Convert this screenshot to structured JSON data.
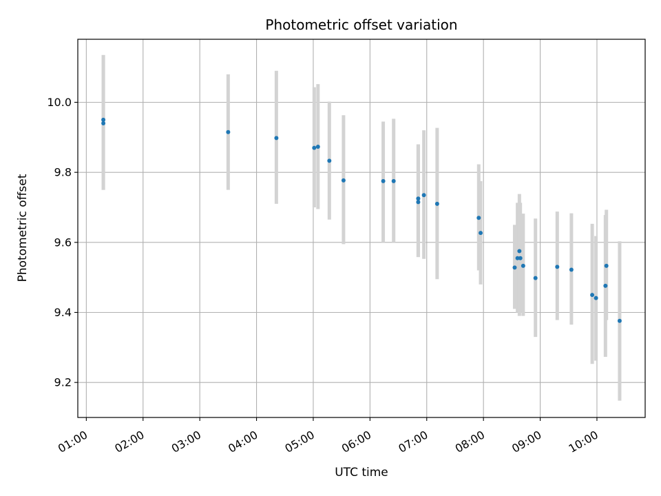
{
  "chart_data": {
    "type": "scatter",
    "title": "Photometric offset variation",
    "xlabel": "UTC time",
    "ylabel": "Photometric offset",
    "grid": true,
    "xlim": [
      "00:51",
      "10:51"
    ],
    "ylim": [
      9.1,
      10.18
    ],
    "x_ticks": [
      "01:00",
      "02:00",
      "03:00",
      "04:00",
      "05:00",
      "06:00",
      "07:00",
      "08:00",
      "09:00",
      "10:00"
    ],
    "y_ticks": [
      9.2,
      9.4,
      9.6,
      9.8,
      10.0
    ],
    "y_tick_labels": [
      "9.2",
      "9.4",
      "9.6",
      "9.8",
      "10.0"
    ],
    "colors": {
      "points": "#1f77b4",
      "errorbars": "#d3d3d3",
      "grid": "#b0b0b0"
    },
    "series": [
      {
        "points": [
          {
            "x": "01:18",
            "y": 9.95,
            "ymin": 9.75,
            "ymax": 10.135
          },
          {
            "x": "01:18",
            "y": 9.94,
            "ymin": 9.75,
            "ymax": 10.135
          },
          {
            "x": "03:30",
            "y": 9.915,
            "ymin": 9.75,
            "ymax": 10.08
          },
          {
            "x": "04:21",
            "y": 9.898,
            "ymin": 9.71,
            "ymax": 10.09
          },
          {
            "x": "05:01",
            "y": 9.87,
            "ymin": 9.7,
            "ymax": 10.043
          },
          {
            "x": "05:05",
            "y": 9.873,
            "ymin": 9.695,
            "ymax": 10.052
          },
          {
            "x": "05:17",
            "y": 9.833,
            "ymin": 9.665,
            "ymax": 10.002
          },
          {
            "x": "05:32",
            "y": 9.777,
            "ymin": 9.595,
            "ymax": 9.963
          },
          {
            "x": "06:14",
            "y": 9.775,
            "ymin": 9.6,
            "ymax": 9.945
          },
          {
            "x": "06:25",
            "y": 9.775,
            "ymin": 9.6,
            "ymax": 9.953
          },
          {
            "x": "06:51",
            "y": 9.725,
            "ymin": 9.558,
            "ymax": 9.88
          },
          {
            "x": "06:51",
            "y": 9.715,
            "ymin": 9.558,
            "ymax": 9.88
          },
          {
            "x": "06:57",
            "y": 9.735,
            "ymin": 9.553,
            "ymax": 9.92
          },
          {
            "x": "07:11",
            "y": 9.71,
            "ymin": 9.495,
            "ymax": 9.927
          },
          {
            "x": "07:55",
            "y": 9.67,
            "ymin": 9.52,
            "ymax": 9.823
          },
          {
            "x": "07:57",
            "y": 9.627,
            "ymin": 9.48,
            "ymax": 9.775
          },
          {
            "x": "08:33",
            "y": 9.528,
            "ymin": 9.41,
            "ymax": 9.65
          },
          {
            "x": "08:36",
            "y": 9.555,
            "ymin": 9.4,
            "ymax": 9.713
          },
          {
            "x": "08:38",
            "y": 9.575,
            "ymin": 9.39,
            "ymax": 9.738
          },
          {
            "x": "08:39",
            "y": 9.555,
            "ymin": 9.4,
            "ymax": 9.713
          },
          {
            "x": "08:42",
            "y": 9.533,
            "ymin": 9.39,
            "ymax": 9.682
          },
          {
            "x": "08:55",
            "y": 9.498,
            "ymin": 9.33,
            "ymax": 9.668
          },
          {
            "x": "09:18",
            "y": 9.53,
            "ymin": 9.378,
            "ymax": 9.688
          },
          {
            "x": "09:33",
            "y": 9.522,
            "ymin": 9.365,
            "ymax": 9.683
          },
          {
            "x": "09:55",
            "y": 9.45,
            "ymin": 9.253,
            "ymax": 9.653
          },
          {
            "x": "09:59",
            "y": 9.441,
            "ymin": 9.262,
            "ymax": 9.618
          },
          {
            "x": "10:09",
            "y": 9.476,
            "ymin": 9.273,
            "ymax": 9.678
          },
          {
            "x": "10:10",
            "y": 9.533,
            "ymin": 9.378,
            "ymax": 9.693
          },
          {
            "x": "10:24",
            "y": 9.376,
            "ymin": 9.148,
            "ymax": 9.603
          }
        ]
      }
    ]
  }
}
